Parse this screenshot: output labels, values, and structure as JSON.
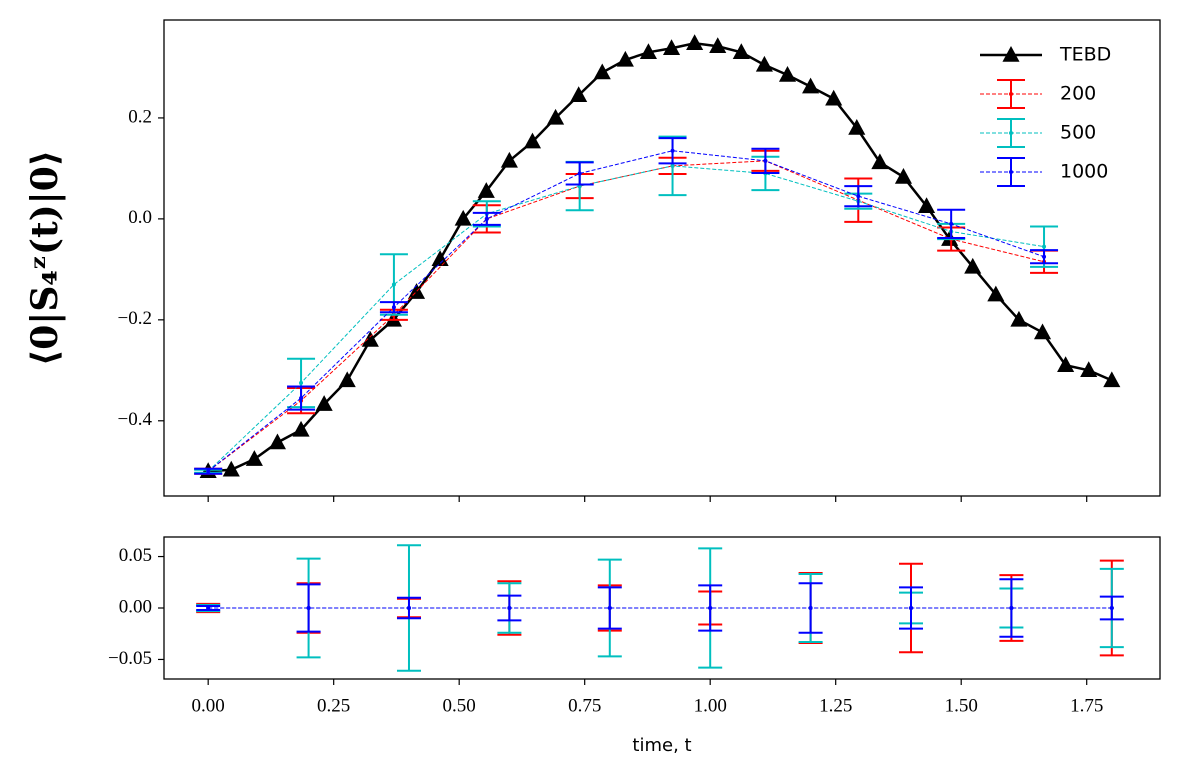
{
  "chart_data": [
    {
      "type": "line",
      "ylabel": "⟨0|S₄ᶻ(t)|0⟩",
      "xlim": [
        -0.088,
        1.896
      ],
      "ylim": [
        -0.549,
        0.394
      ],
      "yticks": [
        {
          "value": 0.2,
          "label": "0.2"
        },
        {
          "value": 0.0,
          "label": "0.0"
        },
        {
          "value": -0.2,
          "label": "−0.2"
        },
        {
          "value": -0.4,
          "label": "−0.4"
        }
      ],
      "legend": "upper right",
      "series": [
        {
          "name": "TEBD",
          "color": "#000000",
          "x": [
            0,
            0.046,
            0.092,
            0.138,
            0.185,
            0.231,
            0.277,
            0.323,
            0.369,
            0.415,
            0.462,
            0.508,
            0.554,
            0.6,
            0.646,
            0.692,
            0.738,
            0.785,
            0.831,
            0.877,
            0.923,
            0.969,
            1.015,
            1.062,
            1.108,
            1.154,
            1.2,
            1.246,
            1.292,
            1.338,
            1.385,
            1.431,
            1.477,
            1.523,
            1.569,
            1.615,
            1.662,
            1.708,
            1.754,
            1.8
          ],
          "values": [
            -0.5,
            -0.497,
            -0.476,
            -0.443,
            -0.418,
            -0.367,
            -0.32,
            -0.24,
            -0.2,
            -0.145,
            -0.08,
            0.0,
            0.055,
            0.115,
            0.153,
            0.2,
            0.245,
            0.29,
            0.315,
            0.33,
            0.338,
            0.348,
            0.342,
            0.33,
            0.305,
            0.285,
            0.262,
            0.238,
            0.18,
            0.112,
            0.083,
            0.025,
            -0.04,
            -0.095,
            -0.15,
            -0.2,
            -0.225,
            -0.29,
            -0.3,
            -0.32
          ]
        },
        {
          "name": "200",
          "color": "#ff0000",
          "x": [
            0,
            0.185,
            0.37,
            0.555,
            0.74,
            0.925,
            1.11,
            1.295,
            1.48,
            1.665
          ],
          "values": [
            -0.5,
            -0.36,
            -0.19,
            0.0,
            0.065,
            0.105,
            0.115,
            0.037,
            -0.04,
            -0.085
          ],
          "errors": [
            0.005,
            0.025,
            0.01,
            0.027,
            0.024,
            0.016,
            0.02,
            0.043,
            0.023,
            0.022
          ]
        },
        {
          "name": "500",
          "color": "#00bfbf",
          "x": [
            0,
            0.185,
            0.37,
            0.555,
            0.74,
            0.925,
            1.11,
            1.295,
            1.48,
            1.665
          ],
          "values": [
            -0.5,
            -0.325,
            -0.13,
            0.01,
            0.065,
            0.105,
            0.09,
            0.035,
            -0.025,
            -0.055
          ],
          "errors": [
            0.003,
            0.048,
            0.06,
            0.025,
            0.048,
            0.058,
            0.033,
            0.015,
            0.015,
            0.04
          ]
        },
        {
          "name": "1000",
          "color": "#0000ff",
          "x": [
            0,
            0.185,
            0.37,
            0.555,
            0.74,
            0.925,
            1.11,
            1.295,
            1.48,
            1.665
          ],
          "values": [
            -0.5,
            -0.355,
            -0.175,
            0.0,
            0.09,
            0.135,
            0.115,
            0.045,
            -0.01,
            -0.075
          ],
          "errors": [
            0.005,
            0.023,
            0.01,
            0.012,
            0.022,
            0.025,
            0.024,
            0.02,
            0.028,
            0.013
          ]
        }
      ]
    },
    {
      "type": "errorbar",
      "xlabel": "time, t",
      "xlim": [
        -0.088,
        1.896
      ],
      "ylim": [
        -0.069,
        0.069
      ],
      "xticks": [
        {
          "value": 0,
          "label": "0.00"
        },
        {
          "value": 0.25,
          "label": "0.25"
        },
        {
          "value": 0.5,
          "label": "0.50"
        },
        {
          "value": 0.75,
          "label": "0.75"
        },
        {
          "value": 1.0,
          "label": "1.00"
        },
        {
          "value": 1.25,
          "label": "1.25"
        },
        {
          "value": 1.5,
          "label": "1.50"
        },
        {
          "value": 1.75,
          "label": "1.75"
        }
      ],
      "yticks": [
        {
          "value": 0.05,
          "label": "0.05"
        },
        {
          "value": 0.0,
          "label": "0.00"
        },
        {
          "value": -0.05,
          "label": "−0.05"
        }
      ],
      "x": [
        0,
        0.2,
        0.4,
        0.6,
        0.8,
        1.0,
        1.2,
        1.4,
        1.6,
        1.8
      ],
      "series": [
        {
          "name": "200",
          "color": "#ff0000",
          "values": [
            0,
            0,
            0,
            0,
            0,
            0,
            0,
            0,
            0,
            0
          ],
          "errors": [
            0.004,
            0.024,
            0.009,
            0.026,
            0.022,
            0.016,
            0.034,
            0.043,
            0.032,
            0.046
          ]
        },
        {
          "name": "500",
          "color": "#00bfbf",
          "values": [
            0,
            0,
            0,
            0,
            0,
            0,
            0,
            0,
            0,
            0
          ],
          "errors": [
            0.003,
            0.048,
            0.061,
            0.024,
            0.047,
            0.058,
            0.033,
            0.015,
            0.019,
            0.038
          ]
        },
        {
          "name": "1000",
          "color": "#0000ff",
          "values": [
            0,
            0,
            0,
            0,
            0,
            0,
            0,
            0,
            0,
            0
          ],
          "errors": [
            0.002,
            0.023,
            0.01,
            0.012,
            0.02,
            0.022,
            0.024,
            0.02,
            0.028,
            0.011
          ]
        }
      ]
    }
  ]
}
